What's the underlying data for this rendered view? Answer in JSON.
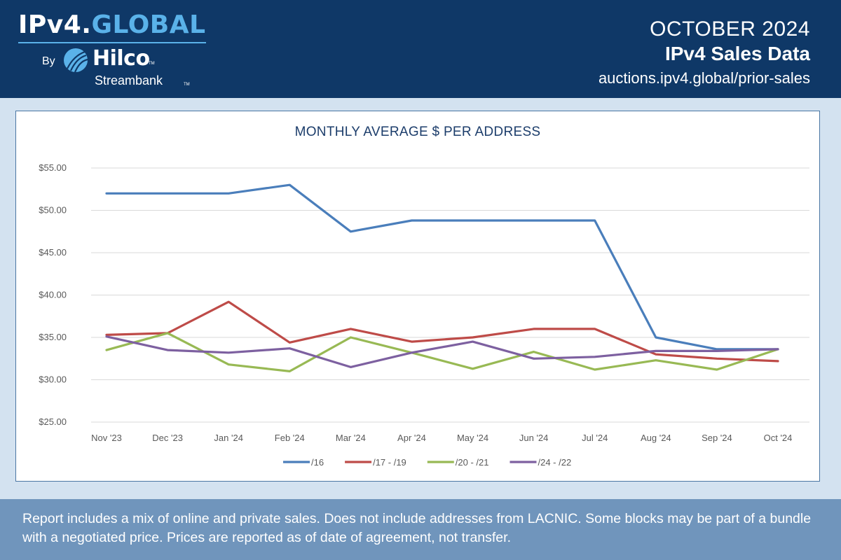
{
  "header": {
    "logo_prefix": "IPv4.",
    "logo_accent": "GLOBAL",
    "logo_by": "By",
    "logo_company": "Hilco",
    "logo_company_sub": "Streambank",
    "logo_tm": "TM",
    "report_month": "OCTOBER 2024",
    "report_title": "IPv4 Sales Data",
    "report_url": "auctions.ipv4.global/prior-sales"
  },
  "colors": {
    "header_bg": "#0f3867",
    "accent": "#5ab2e9",
    "footer_bg": "#7095bc"
  },
  "chart_data": {
    "type": "line",
    "title": "MONTHLY AVERAGE $ PER ADDRESS",
    "xlabel": "",
    "ylabel": "",
    "categories": [
      "Nov '23",
      "Dec '23",
      "Jan '24",
      "Feb '24",
      "Mar '24",
      "Apr '24",
      "May '24",
      "Jun '24",
      "Jul '24",
      "Aug '24",
      "Sep '24",
      "Oct '24"
    ],
    "ylim": [
      25,
      55
    ],
    "yticks": [
      25,
      30,
      35,
      40,
      45,
      50,
      55
    ],
    "ytick_labels": [
      "$25.00",
      "$30.00",
      "$35.00",
      "$40.00",
      "$45.00",
      "$50.00",
      "$55.00"
    ],
    "grid": true,
    "legend_position": "bottom",
    "series": [
      {
        "name": "/16",
        "color": "#4a7ebb",
        "values": [
          52.0,
          52.0,
          52.0,
          53.0,
          47.5,
          48.8,
          48.8,
          48.8,
          48.8,
          35.0,
          33.6,
          33.6
        ]
      },
      {
        "name": "/17 - /19",
        "color": "#be4b48",
        "values": [
          35.3,
          35.5,
          39.2,
          34.4,
          36.0,
          34.5,
          35.0,
          36.0,
          36.0,
          33.0,
          32.5,
          32.2
        ]
      },
      {
        "name": "/20 - /21",
        "color": "#98b954",
        "values": [
          33.5,
          35.5,
          31.8,
          31.0,
          35.0,
          33.2,
          31.3,
          33.3,
          31.2,
          32.3,
          31.2,
          33.6
        ]
      },
      {
        "name": "/24 - /22",
        "color": "#7d60a0",
        "values": [
          35.1,
          33.5,
          33.2,
          33.7,
          31.5,
          33.2,
          34.5,
          32.5,
          32.7,
          33.4,
          33.4,
          33.6
        ]
      }
    ]
  },
  "footer": {
    "note": "Report includes a mix of online and private sales. Does not include addresses from LACNIC. Some blocks may be part of a bundle with a negotiated price. Prices are reported as of date of agreement, not transfer."
  }
}
